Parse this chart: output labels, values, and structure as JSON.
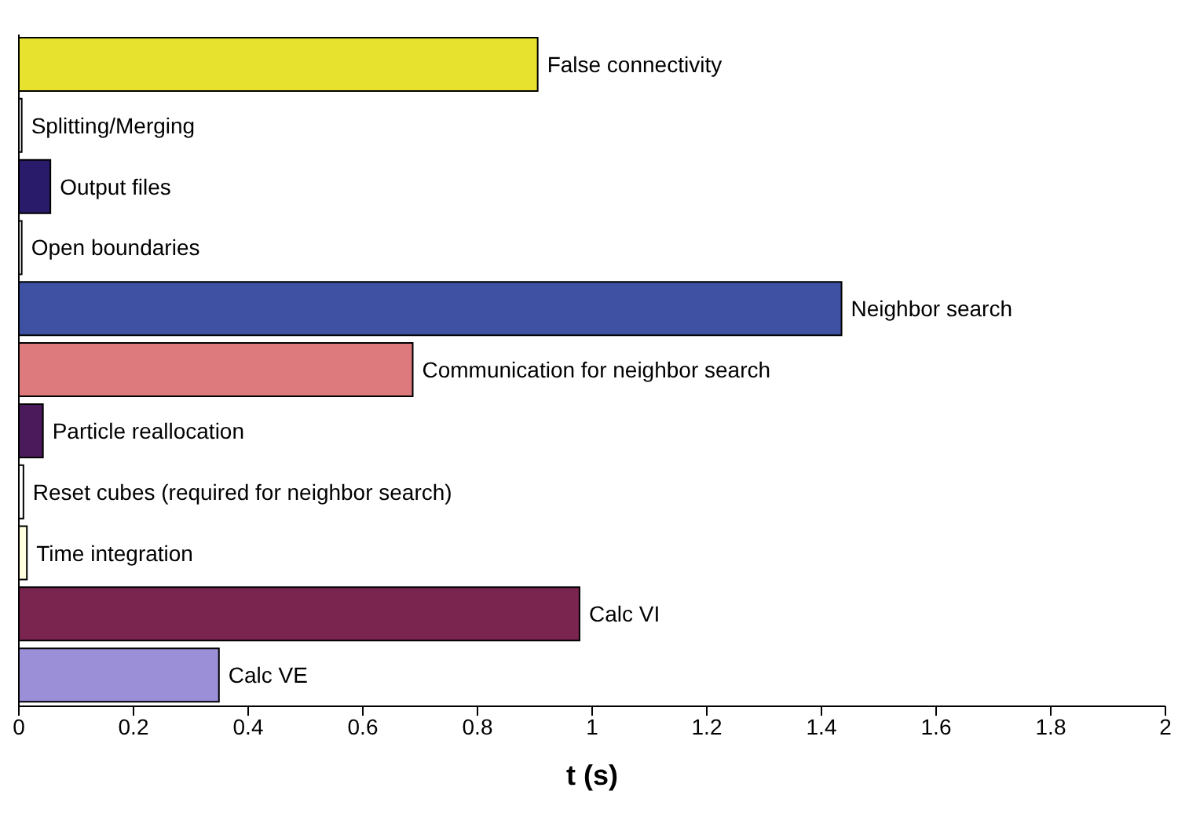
{
  "chart_data": {
    "type": "bar",
    "orientation": "horizontal",
    "xlabel": "t (s)",
    "categories": [
      "False connectivity",
      "Splitting/Merging",
      "Output files",
      "Open boundaries",
      "Neighbor search",
      "Communication for neighbor search",
      "Particle reallocation",
      "Reset cubes  (required for neighbor search)",
      "Time integration",
      "Calc VI",
      "Calc VE"
    ],
    "values": [
      0.905,
      0.005,
      0.055,
      0.005,
      1.435,
      0.687,
      0.042,
      0.008,
      0.014,
      0.978,
      0.349
    ],
    "colors": [
      "#e6e22e",
      "#ffffff",
      "#2a1a6a",
      "#ffffff",
      "#3f51a3",
      "#dc7a7e",
      "#4a1a5a",
      "#ffffff",
      "#ffffe0",
      "#7a2450",
      "#9b8fd8"
    ],
    "xlim": [
      0,
      2
    ],
    "xticks": [
      0,
      0.2,
      0.4,
      0.6,
      0.8,
      1,
      1.2,
      1.4,
      1.6,
      1.8,
      2
    ],
    "grid": false
  }
}
